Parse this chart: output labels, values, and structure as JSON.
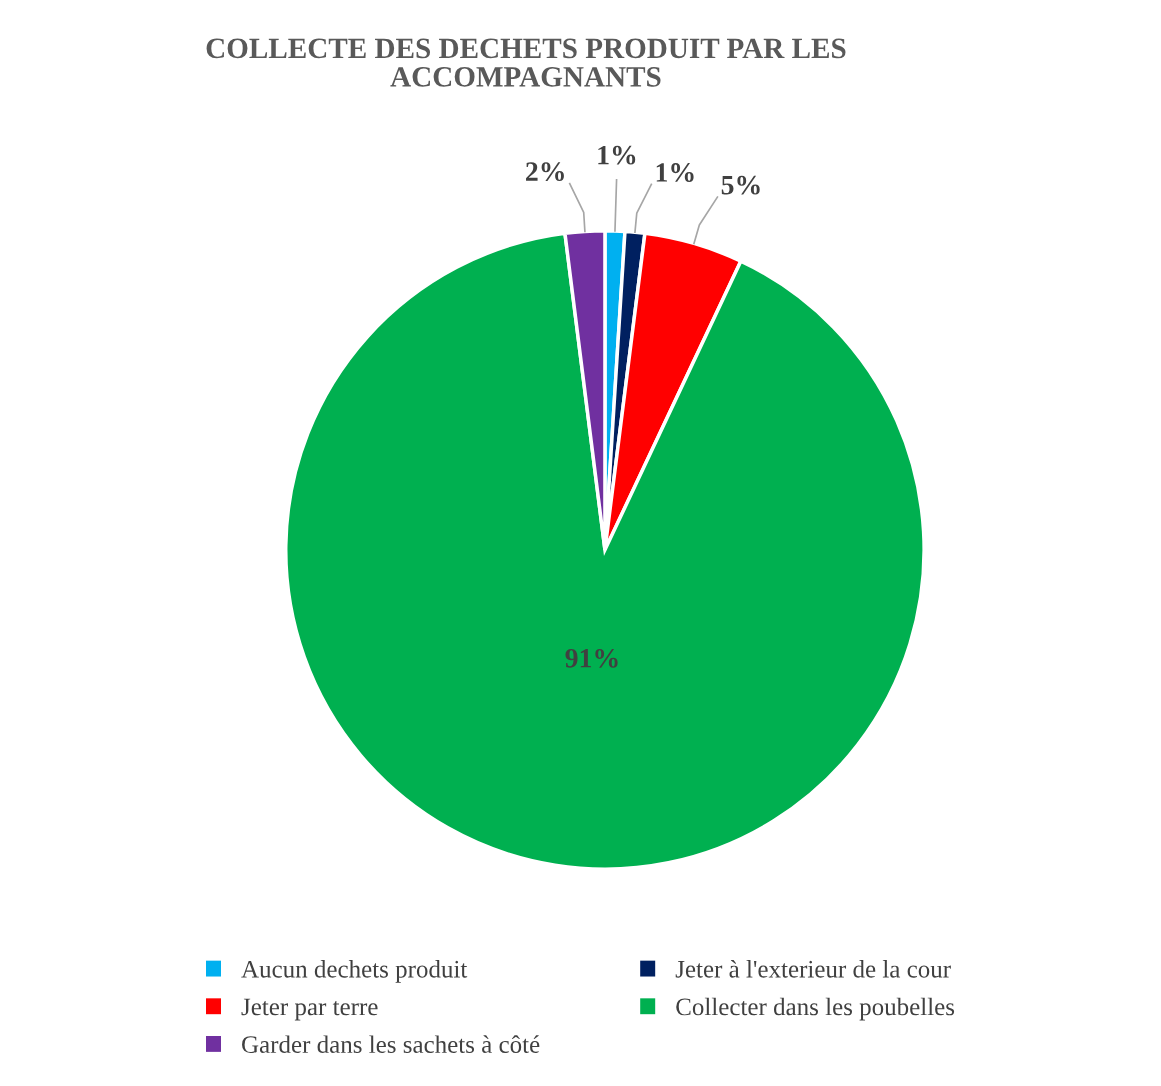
{
  "chart_data": {
    "type": "pie",
    "title": "COLLECTE DES DECHETS PRODUIT PAR LES ACCOMPAGNANTS",
    "categories": [
      "Aucun dechets produit",
      "Jeter à l'exterieur de la cour",
      "Jeter par terre",
      "Collecter dans les poubelles",
      "Garder dans les sachets à côté"
    ],
    "values": [
      1,
      1,
      5,
      91,
      2
    ],
    "value_labels": [
      "1%",
      "1%",
      "5%",
      "91%",
      "2%"
    ],
    "colors": [
      "#00b0f0",
      "#002060",
      "#ff0000",
      "#00b050",
      "#7030a0"
    ],
    "legend": "bottom"
  }
}
